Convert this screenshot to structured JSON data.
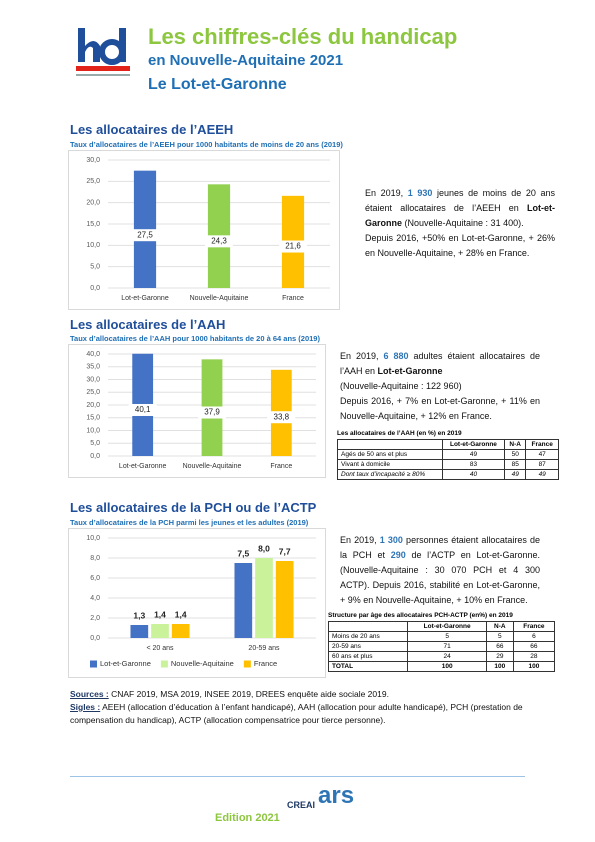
{
  "header": {
    "title": "Les chiffres-clés du handicap",
    "subtitle": "en Nouvelle-Aquitaine 2021",
    "department": "Le Lot-et-Garonne"
  },
  "sections": [
    {
      "heading": "Les allocataires de l’AEEH",
      "text": [
        [
          "En 2019, ",
          {
            "text": "1 930",
            "style": "highlight"
          },
          " jeunes de moins de 20 ans étaient allocataires de l’AEEH en ",
          {
            "text": "Lot-et-Garonne",
            "style": "bold"
          },
          " (Nouvelle-Aquitaine : 31 400)."
        ],
        [
          "Depuis 2016, +50% en Lot-et-Garonne, + 26% en Nouvelle-Aquitaine, + 28% en France."
        ]
      ]
    },
    {
      "heading": "Les allocataires de l’AAH",
      "text": [
        [
          "En 2019, ",
          {
            "text": "6 880",
            "style": "highlight"
          },
          " adultes étaient allocataires de l’AAH en ",
          {
            "text": "Lot-et-Garonne",
            "style": "bold"
          }
        ],
        [
          "(Nouvelle-Aquitaine : 122 960)"
        ],
        [
          "Depuis 2016, + 7% en Lot-et-Garonne, + 11% en Nouvelle-Aquitaine, + 12% en France."
        ]
      ],
      "table": {
        "title": "Les allocataires de l’AAH (en %) en 2019",
        "columns": [
          "Lot-et-Garonne",
          "N-A",
          "France"
        ],
        "last_row_style": "italic",
        "rows": [
          [
            "Agés de 50 ans et plus",
            49,
            50,
            47
          ],
          [
            "Vivant à domicile",
            83,
            85,
            87
          ],
          [
            "Dont taux d’incapacité ≥ 80%",
            40,
            49,
            49
          ]
        ]
      }
    },
    {
      "heading": "Les allocataires de la PCH ou de l’ACTP",
      "text": [
        [
          "En 2019, ",
          {
            "text": "1 300",
            "style": "highlight"
          },
          " personnes étaient allocataires de la PCH et ",
          {
            "text": "290",
            "style": "highlight"
          },
          " de l’ACTP en Lot-et-Garonne. (Nouvelle-Aquitaine : 30 070 PCH et 4 300 ACTP). Depuis 2016, stabilité en Lot-et-Garonne, + 9% en Nouvelle-Aquitaine, + 10% en France."
        ]
      ],
      "table": {
        "title": "Structure par âge des allocataires PCH-ACTP (en%) en 2019",
        "columns": [
          "Lot-et-Garonne",
          "N-A",
          "France"
        ],
        "last_row_style": "bold",
        "rows": [
          [
            "Moins de 20 ans",
            5,
            5,
            6
          ],
          [
            "20-59 ans",
            71,
            66,
            66
          ],
          [
            "60 ans et plus",
            24,
            29,
            28
          ],
          [
            "TOTAL",
            100,
            100,
            100
          ]
        ]
      }
    }
  ],
  "chart_data": [
    {
      "type": "bar",
      "title": "Taux d’allocataires de l’AEEH pour 1000 habitants de moins de 20 ans (2019)",
      "categories": [
        "Lot-et-Garonne",
        "Nouvelle-Aquitaine",
        "France"
      ],
      "values": [
        27.5,
        24.3,
        21.6
      ],
      "value_labels": [
        "27,5",
        "24,3",
        "21,6"
      ],
      "colors": [
        "#4472c4",
        "#92d050",
        "#ffc000"
      ],
      "label_position": "inside",
      "grid": true,
      "ylim": [
        0,
        30
      ],
      "yticks": [
        {
          "value": 0,
          "label": "0,0"
        },
        {
          "value": 5,
          "label": "5,0"
        },
        {
          "value": 10,
          "label": "10,0"
        },
        {
          "value": 15,
          "label": "15,0"
        },
        {
          "value": 20,
          "label": "20,0"
        },
        {
          "value": 25,
          "label": "25,0"
        },
        {
          "value": 30,
          "label": "30,0"
        }
      ]
    },
    {
      "type": "bar",
      "title": "Taux d’allocataires de l’AAH pour 1000 habitants de 20 à 64 ans (2019)",
      "categories": [
        "Lot-et-Garonne",
        "Nouvelle-Aquitaine",
        "France"
      ],
      "values": [
        40.1,
        37.9,
        33.8
      ],
      "value_labels": [
        "40,1",
        "37,9",
        "33,8"
      ],
      "colors": [
        "#4472c4",
        "#92d050",
        "#ffc000"
      ],
      "label_position": "inside",
      "grid": true,
      "ylim": [
        0,
        40
      ],
      "yticks": [
        {
          "value": 0,
          "label": "0,0"
        },
        {
          "value": 5,
          "label": "5,0"
        },
        {
          "value": 10,
          "label": "10,0"
        },
        {
          "value": 15,
          "label": "15,0"
        },
        {
          "value": 20,
          "label": "20,0"
        },
        {
          "value": 25,
          "label": "25,0"
        },
        {
          "value": 30,
          "label": "30,0"
        },
        {
          "value": 35,
          "label": "35,0"
        },
        {
          "value": 40,
          "label": "40,0"
        }
      ]
    },
    {
      "type": "bar",
      "title": "Taux d’allocataires de la PCH parmi les jeunes et les adultes (2019)",
      "categories": [
        "< 20 ans",
        "20-59 ans"
      ],
      "label_position": "above",
      "grid": true,
      "legend": "bottom",
      "ylim": [
        0,
        10
      ],
      "yticks": [
        {
          "value": 0,
          "label": "0,0"
        },
        {
          "value": 2,
          "label": "2,0"
        },
        {
          "value": 4,
          "label": "4,0"
        },
        {
          "value": 6,
          "label": "6,0"
        },
        {
          "value": 8,
          "label": "8,0"
        },
        {
          "value": 10,
          "label": "10,0"
        }
      ],
      "series": [
        {
          "name": "Lot-et-Garonne",
          "color": "#4472c4",
          "values": [
            1.3,
            7.5
          ],
          "value_labels": [
            "1,3",
            "7,5"
          ]
        },
        {
          "name": "Nouvelle-Aquitaine",
          "color": "#c9f29b",
          "values": [
            1.4,
            8.0
          ],
          "value_labels": [
            "1,4",
            "8,0"
          ]
        },
        {
          "name": "France",
          "color": "#ffc000",
          "values": [
            1.4,
            7.7
          ],
          "value_labels": [
            "1,4",
            "7,7"
          ]
        }
      ]
    }
  ],
  "footer": {
    "sources_label": "Sources :",
    "sources": " CNAF 2019, MSA 2019, INSEE 2019, DREES enquête aide sociale 2019.",
    "sigles_label": "Sigles :",
    "sigles": " AEEH (allocation d’éducation à l’enfant handicapé), AAH (allocation pour adulte handicapé), PCH (prestation de compensation du handicap), ACTP (allocation compensatrice pour tierce personne).",
    "edition": "Edition 2021",
    "logo_creai": "CREAI",
    "logo_ars": "ars"
  }
}
